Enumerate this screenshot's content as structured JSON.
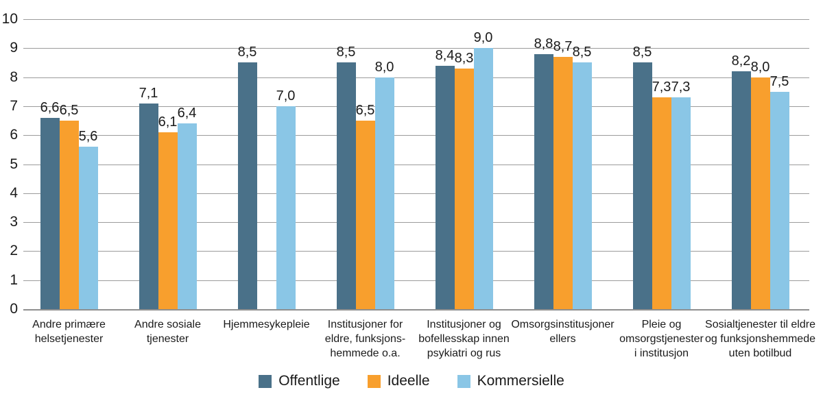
{
  "chart_data": {
    "type": "bar",
    "title": "",
    "xlabel": "",
    "ylabel": "",
    "ylim": [
      0,
      10
    ],
    "yticks": [
      0,
      1,
      2,
      3,
      4,
      5,
      6,
      7,
      8,
      9,
      10
    ],
    "grid": true,
    "decimal_separator": ",",
    "legend_position": "bottom",
    "categories": [
      [
        "Andre primære",
        "helsetjenester"
      ],
      [
        "Andre sosiale",
        "tjenester"
      ],
      [
        "Hjemmesykepleie"
      ],
      [
        "Institusjoner for",
        "eldre, funksjons-",
        "hemmede o.a."
      ],
      [
        "Institusjoner og",
        "bofellesskap innen",
        "psykiatri og rus"
      ],
      [
        "Omsorgsinstitusjoner",
        "ellers"
      ],
      [
        "Pleie og",
        "omsorgstjenester",
        "i institusjon"
      ],
      [
        "Sosialtjenester til eldre",
        "og funksjonshemmede",
        "uten botilbud"
      ]
    ],
    "series": [
      {
        "name": "Offentlige",
        "color": "#4A7189",
        "values": [
          6.6,
          7.1,
          8.5,
          8.5,
          8.4,
          8.8,
          8.5,
          8.2
        ],
        "labels": [
          "6,6",
          "7,1",
          "8,5",
          "8,5",
          "8,4",
          "8,8",
          "8,5",
          "8,2"
        ]
      },
      {
        "name": "Ideelle",
        "color": "#F89F2D",
        "values": [
          6.5,
          6.1,
          null,
          6.5,
          8.3,
          8.7,
          7.3,
          8.0
        ],
        "labels": [
          "6,5",
          "6,1",
          null,
          "6,5",
          "8,3",
          "8,7",
          "7,3",
          "8,0"
        ]
      },
      {
        "name": "Kommersielle",
        "color": "#8AC6E6",
        "values": [
          5.6,
          6.4,
          7.0,
          8.0,
          9.0,
          8.5,
          7.3,
          7.5
        ],
        "labels": [
          "5,6",
          "6,4",
          "7,0",
          "8,0",
          "9,0",
          "8,5",
          "7,3",
          "7,5"
        ]
      }
    ],
    "colors": {
      "background": "#ffffff",
      "grid": "#9b9b9b",
      "axis": "#8f8f8f",
      "text": "#1a1a1a"
    }
  }
}
